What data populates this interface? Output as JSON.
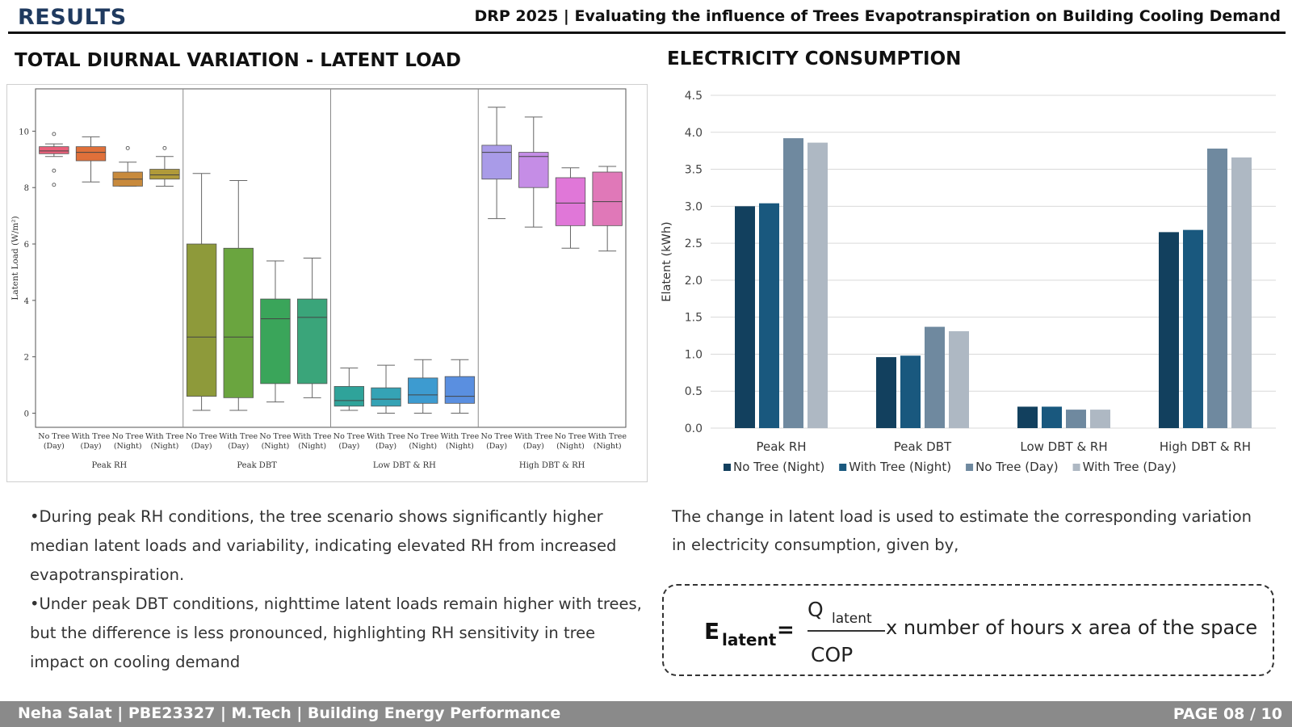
{
  "header": {
    "left": "RESULTS",
    "right": "DRP 2025 | Evaluating the influence of Trees Evapotranspiration on Building Cooling Demand"
  },
  "left_section": {
    "title": "TOTAL DIURNAL VARIATION - LATENT LOAD"
  },
  "right_section": {
    "title": "ELECTRICITY CONSUMPTION"
  },
  "chart_data": [
    {
      "type": "box",
      "ylabel": "Latent Load (W/m²)",
      "ylim": [
        -0.5,
        11.5
      ],
      "yticks": [
        0,
        2,
        4,
        6,
        8,
        10
      ],
      "grid": false,
      "groups": [
        "Peak RH",
        "Peak DBT",
        "Low DBT & RH",
        "High DBT & RH"
      ],
      "boxes": [
        {
          "label": [
            "No Tree",
            "(Day)"
          ],
          "group": "Peak RH",
          "min": 9.1,
          "q1": 9.2,
          "median": 9.3,
          "q3": 9.45,
          "max": 9.55,
          "outliers": [
            9.9,
            8.6,
            8.1
          ],
          "color": "#e8607a"
        },
        {
          "label": [
            "With Tree",
            "(Day)"
          ],
          "group": "Peak RH",
          "min": 8.2,
          "q1": 8.95,
          "median": 9.25,
          "q3": 9.45,
          "max": 9.8,
          "outliers": [],
          "color": "#e0703a"
        },
        {
          "label": [
            "No Tree",
            "(Night)"
          ],
          "group": "Peak RH",
          "min": 8.05,
          "q1": 8.05,
          "median": 8.3,
          "q3": 8.55,
          "max": 8.9,
          "outliers": [
            9.4
          ],
          "color": "#c88a3c"
        },
        {
          "label": [
            "With Tree",
            "(Night)"
          ],
          "group": "Peak RH",
          "min": 8.05,
          "q1": 8.3,
          "median": 8.45,
          "q3": 8.65,
          "max": 9.1,
          "outliers": [
            9.4
          ],
          "color": "#b09a3a"
        },
        {
          "label": [
            "No Tree",
            "(Day)"
          ],
          "group": "Peak DBT",
          "min": 0.1,
          "q1": 0.6,
          "median": 2.7,
          "q3": 6.0,
          "max": 8.5,
          "outliers": [],
          "color": "#8e9a3a"
        },
        {
          "label": [
            "With Tree",
            "(Day)"
          ],
          "group": "Peak DBT",
          "min": 0.1,
          "q1": 0.55,
          "median": 2.7,
          "q3": 5.85,
          "max": 8.25,
          "outliers": [],
          "color": "#6aa53f"
        },
        {
          "label": [
            "No Tree",
            "(Night)"
          ],
          "group": "Peak DBT",
          "min": 0.4,
          "q1": 1.05,
          "median": 3.35,
          "q3": 4.05,
          "max": 5.4,
          "outliers": [],
          "color": "#3aa55a"
        },
        {
          "label": [
            "With Tree",
            "(Night)"
          ],
          "group": "Peak DBT",
          "min": 0.55,
          "q1": 1.05,
          "median": 3.4,
          "q3": 4.05,
          "max": 5.5,
          "outliers": [],
          "color": "#3aa57a"
        },
        {
          "label": [
            "No Tree",
            "(Day)"
          ],
          "group": "Low DBT & RH",
          "min": 0.1,
          "q1": 0.25,
          "median": 0.45,
          "q3": 0.95,
          "max": 1.6,
          "outliers": [],
          "color": "#2fa39a"
        },
        {
          "label": [
            "With Tree",
            "(Day)"
          ],
          "group": "Low DBT & RH",
          "min": 0.0,
          "q1": 0.25,
          "median": 0.5,
          "q3": 0.9,
          "max": 1.7,
          "outliers": [],
          "color": "#35a3b5"
        },
        {
          "label": [
            "No Tree",
            "(Night)"
          ],
          "group": "Low DBT & RH",
          "min": 0.0,
          "q1": 0.35,
          "median": 0.65,
          "q3": 1.25,
          "max": 1.9,
          "outliers": [],
          "color": "#3d9bd0"
        },
        {
          "label": [
            "With Tree",
            "(Night)"
          ],
          "group": "Low DBT & RH",
          "min": 0.0,
          "q1": 0.35,
          "median": 0.6,
          "q3": 1.3,
          "max": 1.9,
          "outliers": [],
          "color": "#5a8fe0"
        },
        {
          "label": [
            "No Tree",
            "(Day)"
          ],
          "group": "High DBT & RH",
          "min": 6.9,
          "q1": 8.3,
          "median": 9.25,
          "q3": 9.5,
          "max": 10.85,
          "outliers": [],
          "color": "#a99be8"
        },
        {
          "label": [
            "With Tree",
            "(Day)"
          ],
          "group": "High DBT & RH",
          "min": 6.6,
          "q1": 8.0,
          "median": 9.1,
          "q3": 9.25,
          "max": 10.5,
          "outliers": [],
          "color": "#c58de6"
        },
        {
          "label": [
            "No Tree",
            "(Night)"
          ],
          "group": "High DBT & RH",
          "min": 5.85,
          "q1": 6.65,
          "median": 7.45,
          "q3": 8.35,
          "max": 8.7,
          "outliers": [],
          "color": "#e077d8"
        },
        {
          "label": [
            "With Tree",
            "(Night)"
          ],
          "group": "High DBT & RH",
          "min": 5.75,
          "q1": 6.65,
          "median": 7.5,
          "q3": 8.55,
          "max": 8.75,
          "outliers": [],
          "color": "#e078b8"
        }
      ]
    },
    {
      "type": "bar",
      "ylabel": "Elatent (kWh)",
      "ylim": [
        0,
        4.5
      ],
      "yticks": [
        "0.0",
        "0.5",
        "1.0",
        "1.5",
        "2.0",
        "2.5",
        "3.0",
        "3.5",
        "4.0",
        "4.5"
      ],
      "grid": true,
      "legend_position": "bottom",
      "categories": [
        "Peak RH",
        "Peak DBT",
        "Low DBT & RH",
        "High DBT & RH"
      ],
      "series": [
        {
          "name": "No Tree (Night)",
          "color": "#12405e",
          "values": [
            3.0,
            0.96,
            0.29,
            2.65
          ]
        },
        {
          "name": "With Tree (Night)",
          "color": "#19587e",
          "values": [
            3.04,
            0.98,
            0.29,
            2.68
          ]
        },
        {
          "name": "No Tree (Day)",
          "color": "#6f899f",
          "values": [
            3.92,
            1.37,
            0.25,
            3.78
          ]
        },
        {
          "name": "With Tree (Day)",
          "color": "#aeb8c3",
          "values": [
            3.86,
            1.31,
            0.25,
            3.66
          ]
        }
      ]
    }
  ],
  "bullets": [
    "•During peak RH conditions, the tree scenario shows significantly higher median latent loads and variability, indicating elevated RH from increased evapotranspiration.",
    "•Under peak DBT conditions, nighttime latent loads remain higher with trees, but the difference is less pronounced, highlighting RH sensitivity in tree impact on cooling demand"
  ],
  "paragraph": "The change in latent load is used to estimate the corresponding variation in electricity consumption, given by,",
  "formula": {
    "lhs": "E",
    "lhs_sub": "latent",
    "equals": "=",
    "numerator": "Q",
    "numerator_sub": "latent",
    "denominator": "COP",
    "rest": "x number of hours x area of the space"
  },
  "footer": {
    "left": "Neha Salat | PBE23327 | M.Tech | Building Energy Performance",
    "right": "PAGE 08 / 10"
  }
}
